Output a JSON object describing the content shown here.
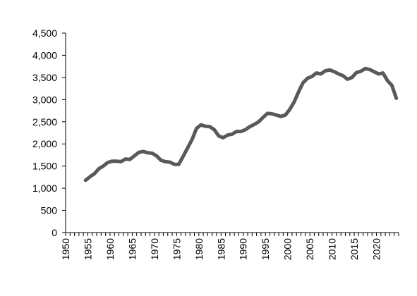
{
  "chart_data": {
    "type": "line",
    "title": "",
    "xlabel": "",
    "ylabel": "",
    "xlim": [
      1950,
      2024
    ],
    "ylim": [
      0,
      4500
    ],
    "y_ticks": [
      {
        "value": 0,
        "label": "0"
      },
      {
        "value": 500,
        "label": "500"
      },
      {
        "value": 1000,
        "label": "1,000"
      },
      {
        "value": 1500,
        "label": "1,500"
      },
      {
        "value": 2000,
        "label": "2,000"
      },
      {
        "value": 2500,
        "label": "2,500"
      },
      {
        "value": 3000,
        "label": "3,000"
      },
      {
        "value": 3500,
        "label": "3,500"
      },
      {
        "value": 4000,
        "label": "4,000"
      },
      {
        "value": 4500,
        "label": "4,500"
      }
    ],
    "x_tick_labels": [
      {
        "value": 1950,
        "label": "1950"
      },
      {
        "value": 1955,
        "label": "1955"
      },
      {
        "value": 1960,
        "label": "1960"
      },
      {
        "value": 1965,
        "label": "1965"
      },
      {
        "value": 1970,
        "label": "1970"
      },
      {
        "value": 1975,
        "label": "1975"
      },
      {
        "value": 1980,
        "label": "1980"
      },
      {
        "value": 1985,
        "label": "1985"
      },
      {
        "value": 1990,
        "label": "1990"
      },
      {
        "value": 1995,
        "label": "1995"
      },
      {
        "value": 2000,
        "label": "2000"
      },
      {
        "value": 2005,
        "label": "2005"
      },
      {
        "value": 2010,
        "label": "2010"
      },
      {
        "value": 2015,
        "label": "2015"
      },
      {
        "value": 2020,
        "label": "2020"
      }
    ],
    "grid": false,
    "legend": "none",
    "series": [
      {
        "color": "#595959",
        "x": [
          1954,
          1955,
          1956,
          1957,
          1958,
          1959,
          1960,
          1961,
          1962,
          1963,
          1964,
          1965,
          1966,
          1967,
          1968,
          1969,
          1970,
          1971,
          1972,
          1973,
          1974,
          1975,
          1976,
          1977,
          1978,
          1979,
          1980,
          1981,
          1982,
          1983,
          1984,
          1985,
          1986,
          1987,
          1988,
          1989,
          1990,
          1991,
          1992,
          1993,
          1994,
          1995,
          1996,
          1997,
          1998,
          1999,
          2000,
          2001,
          2002,
          2003,
          2004,
          2005,
          2006,
          2007,
          2008,
          2009,
          2010,
          2011,
          2012,
          2013,
          2014,
          2015,
          2016,
          2017,
          2018,
          2019,
          2020,
          2021,
          2022,
          2023,
          2024
        ],
        "y": [
          1180,
          1260,
          1330,
          1440,
          1500,
          1580,
          1610,
          1610,
          1600,
          1660,
          1650,
          1730,
          1810,
          1830,
          1800,
          1790,
          1730,
          1630,
          1600,
          1590,
          1540,
          1540,
          1720,
          1910,
          2100,
          2350,
          2430,
          2400,
          2390,
          2320,
          2180,
          2140,
          2200,
          2220,
          2280,
          2280,
          2320,
          2390,
          2440,
          2500,
          2600,
          2690,
          2680,
          2650,
          2620,
          2650,
          2780,
          2950,
          3180,
          3380,
          3480,
          3520,
          3600,
          3580,
          3650,
          3670,
          3630,
          3580,
          3540,
          3460,
          3500,
          3610,
          3640,
          3700,
          3680,
          3630,
          3580,
          3600,
          3430,
          3320,
          3030
        ]
      }
    ]
  }
}
